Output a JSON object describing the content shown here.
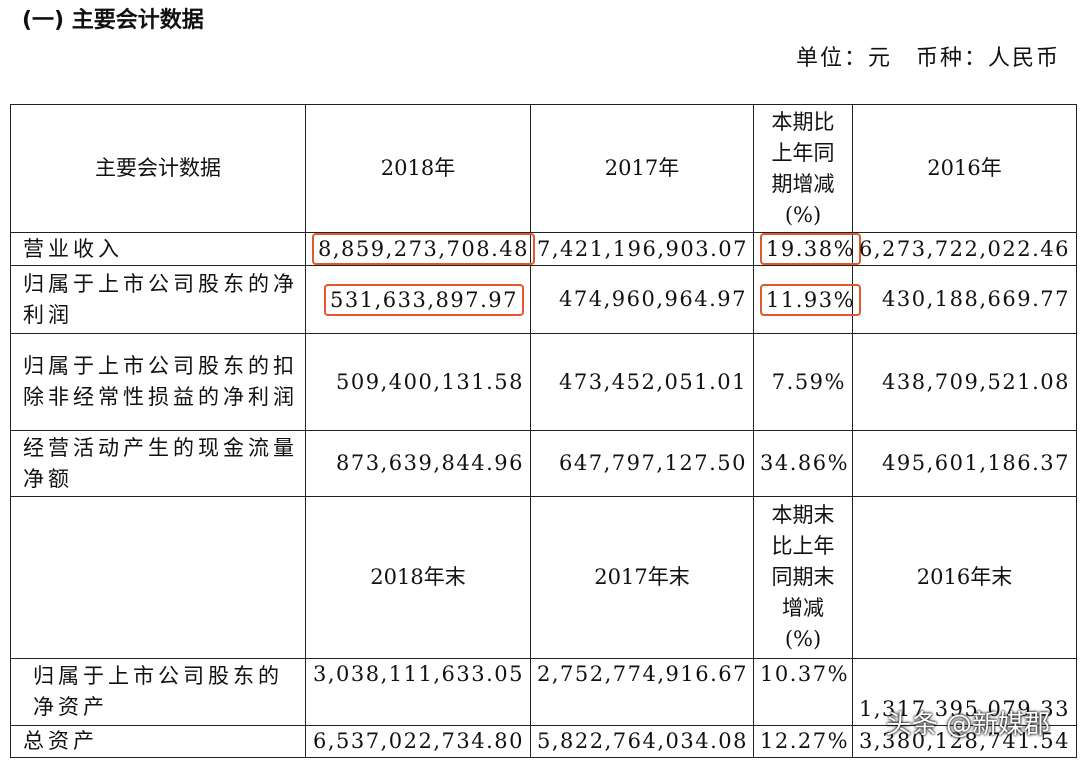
{
  "header": {
    "title": "(一) 主要会计数据",
    "unit": "单位：元　币种：人民币"
  },
  "table": {
    "header": [
      "主要会计数据",
      "2018年",
      "2017年",
      "本期比上年同期增减(%)",
      "2016年"
    ],
    "rows": [
      [
        "营业收入",
        "8,859,273,708.48",
        "7,421,196,903.07",
        "19.38%",
        "6,273,722,022.46"
      ],
      [
        "归属于上市公司股东的净利润",
        "531,633,897.97",
        "474,960,964.97",
        "11.93%",
        "430,188,669.77"
      ],
      [
        "归属于上市公司股东的扣除非经常性损益的净利润",
        "509,400,131.58",
        "473,452,051.01",
        "7.59%",
        "438,709,521.08"
      ],
      [
        "经营活动产生的现金流量净额",
        "873,639,844.96",
        "647,797,127.50",
        "34.86%",
        "495,601,186.37"
      ]
    ],
    "header2": [
      "2018年末",
      "2017年末",
      "本期末比上年同期末增减(%)",
      "2016年末"
    ],
    "rows2": [
      [
        "归属于上市公司股东的净资产",
        "3,038,111,633.05",
        "2,752,774,916.67",
        "10.37%",
        "1,317,395,079.33"
      ],
      [
        "总资产",
        "6,537,022,734.80",
        "5,822,764,034.08",
        "12.27%",
        "3,380,128,741.54"
      ]
    ]
  },
  "watermark": "头条 @新媒郡"
}
